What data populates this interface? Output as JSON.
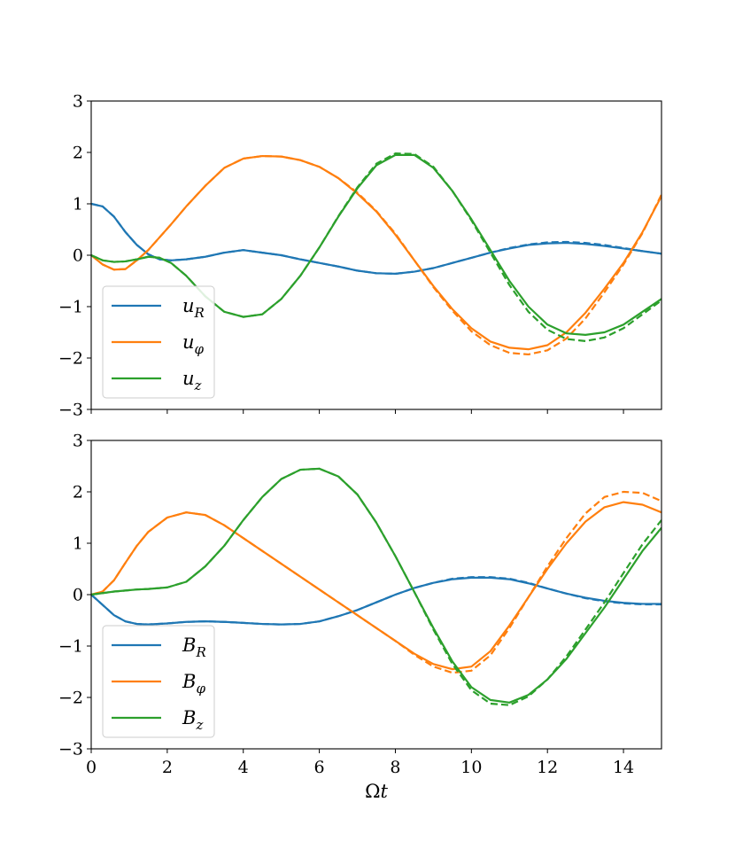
{
  "chart_data": [
    {
      "type": "line",
      "id": "velocity",
      "xlim": [
        0,
        15
      ],
      "ylim": [
        -3,
        3
      ],
      "yticks": [
        -3,
        -2,
        -1,
        0,
        1,
        2,
        3
      ],
      "ytick_labels": [
        "−3",
        "−2",
        "−1",
        "0",
        "1",
        "2",
        "3"
      ],
      "xticks": [
        0,
        2,
        4,
        6,
        8,
        10,
        12,
        14
      ],
      "xtick_labels": [],
      "xlabel": "",
      "ylabel": "",
      "legend": {
        "placement": "lower-left"
      },
      "series": [
        {
          "name": "u_R",
          "label_main": "u",
          "label_sub": "R",
          "color": "#1f77b4",
          "x": [
            0,
            0.3,
            0.6,
            0.9,
            1.2,
            1.5,
            1.8,
            2.1,
            2.5,
            3.0,
            3.5,
            4.0,
            4.5,
            5.0,
            5.5,
            6.0,
            6.5,
            7.0,
            7.5,
            8.0,
            8.5,
            9.0,
            9.5,
            10.0,
            10.5,
            11.0,
            11.5,
            12.0,
            12.5,
            13.0,
            13.5,
            14.0,
            14.5,
            15.0
          ],
          "y": [
            1.0,
            0.95,
            0.75,
            0.45,
            0.2,
            0.02,
            -0.08,
            -0.1,
            -0.08,
            -0.03,
            0.05,
            0.1,
            0.05,
            0.0,
            -0.08,
            -0.15,
            -0.22,
            -0.3,
            -0.35,
            -0.36,
            -0.32,
            -0.25,
            -0.15,
            -0.05,
            0.05,
            0.13,
            0.2,
            0.23,
            0.24,
            0.22,
            0.18,
            0.13,
            0.08,
            0.03
          ],
          "dashed_y": [
            1.0,
            0.95,
            0.75,
            0.45,
            0.2,
            0.02,
            -0.08,
            -0.1,
            -0.08,
            -0.03,
            0.05,
            0.1,
            0.05,
            0.0,
            -0.08,
            -0.15,
            -0.22,
            -0.3,
            -0.35,
            -0.36,
            -0.32,
            -0.25,
            -0.15,
            -0.05,
            0.05,
            0.14,
            0.21,
            0.25,
            0.26,
            0.24,
            0.2,
            0.14,
            0.08,
            0.03
          ]
        },
        {
          "name": "u_φ",
          "label_main": "u",
          "label_sub": "φ",
          "color": "#ff7f0e",
          "x": [
            0,
            0.3,
            0.6,
            0.9,
            1.2,
            1.5,
            1.8,
            2.1,
            2.5,
            3.0,
            3.5,
            4.0,
            4.5,
            5.0,
            5.5,
            6.0,
            6.5,
            7.0,
            7.5,
            8.0,
            8.5,
            9.0,
            9.5,
            10.0,
            10.5,
            11.0,
            11.5,
            12.0,
            12.5,
            13.0,
            13.5,
            14.0,
            14.5,
            15.0
          ],
          "y": [
            0.0,
            -0.18,
            -0.28,
            -0.27,
            -0.1,
            0.1,
            0.35,
            0.6,
            0.95,
            1.35,
            1.7,
            1.88,
            1.93,
            1.92,
            1.85,
            1.72,
            1.5,
            1.2,
            0.85,
            0.4,
            -0.1,
            -0.6,
            -1.05,
            -1.42,
            -1.68,
            -1.8,
            -1.83,
            -1.75,
            -1.5,
            -1.12,
            -0.65,
            -0.15,
            0.45,
            1.15
          ],
          "dashed_y": [
            0.0,
            -0.18,
            -0.28,
            -0.27,
            -0.1,
            0.1,
            0.35,
            0.6,
            0.95,
            1.35,
            1.7,
            1.88,
            1.93,
            1.92,
            1.85,
            1.72,
            1.5,
            1.22,
            0.86,
            0.42,
            -0.1,
            -0.62,
            -1.08,
            -1.48,
            -1.75,
            -1.9,
            -1.93,
            -1.85,
            -1.62,
            -1.23,
            -0.72,
            -0.18,
            0.43,
            1.18
          ]
        },
        {
          "name": "u_z",
          "label_main": "u",
          "label_sub": "z",
          "color": "#2ca02c",
          "x": [
            0,
            0.3,
            0.6,
            0.9,
            1.2,
            1.5,
            1.8,
            2.1,
            2.5,
            3.0,
            3.5,
            4.0,
            4.5,
            5.0,
            5.5,
            6.0,
            6.5,
            7.0,
            7.5,
            8.0,
            8.5,
            9.0,
            9.5,
            10.0,
            10.5,
            11.0,
            11.5,
            12.0,
            12.5,
            13.0,
            13.5,
            14.0,
            14.5,
            15.0
          ],
          "y": [
            0.0,
            -0.1,
            -0.13,
            -0.12,
            -0.08,
            -0.03,
            -0.05,
            -0.15,
            -0.4,
            -0.8,
            -1.1,
            -1.2,
            -1.15,
            -0.85,
            -0.4,
            0.15,
            0.75,
            1.3,
            1.75,
            1.95,
            1.95,
            1.7,
            1.25,
            0.7,
            0.1,
            -0.5,
            -1.0,
            -1.35,
            -1.52,
            -1.55,
            -1.5,
            -1.35,
            -1.1,
            -0.85
          ],
          "dashed_y": [
            0.0,
            -0.1,
            -0.13,
            -0.12,
            -0.08,
            -0.03,
            -0.05,
            -0.15,
            -0.4,
            -0.8,
            -1.1,
            -1.2,
            -1.15,
            -0.85,
            -0.4,
            0.15,
            0.76,
            1.32,
            1.78,
            1.98,
            1.97,
            1.72,
            1.25,
            0.68,
            0.05,
            -0.58,
            -1.1,
            -1.45,
            -1.63,
            -1.67,
            -1.6,
            -1.42,
            -1.15,
            -0.88
          ]
        }
      ]
    },
    {
      "type": "line",
      "id": "magnetic",
      "xlim": [
        0,
        15
      ],
      "ylim": [
        -3,
        3
      ],
      "yticks": [
        -3,
        -2,
        -1,
        0,
        1,
        2,
        3
      ],
      "ytick_labels": [
        "−3",
        "−2",
        "−1",
        "0",
        "1",
        "2",
        "3"
      ],
      "xticks": [
        0,
        2,
        4,
        6,
        8,
        10,
        12,
        14
      ],
      "xtick_labels": [
        "0",
        "2",
        "4",
        "6",
        "8",
        "10",
        "12",
        "14"
      ],
      "xlabel": "Ωt",
      "ylabel": "",
      "legend": {
        "placement": "lower-left"
      },
      "series": [
        {
          "name": "B_R",
          "label_main": "B",
          "label_sub": "R",
          "color": "#1f77b4",
          "x": [
            0,
            0.3,
            0.6,
            0.9,
            1.2,
            1.5,
            2.0,
            2.5,
            3.0,
            3.5,
            4.0,
            4.5,
            5.0,
            5.5,
            6.0,
            6.5,
            7.0,
            7.5,
            8.0,
            8.5,
            9.0,
            9.5,
            10.0,
            10.5,
            11.0,
            11.5,
            12.0,
            12.5,
            13.0,
            13.5,
            14.0,
            14.5,
            15.0
          ],
          "y": [
            0.0,
            -0.2,
            -0.4,
            -0.52,
            -0.57,
            -0.58,
            -0.56,
            -0.53,
            -0.52,
            -0.53,
            -0.55,
            -0.57,
            -0.58,
            -0.57,
            -0.52,
            -0.42,
            -0.3,
            -0.15,
            0.0,
            0.13,
            0.23,
            0.3,
            0.33,
            0.33,
            0.3,
            0.22,
            0.12,
            0.02,
            -0.06,
            -0.12,
            -0.16,
            -0.18,
            -0.18
          ],
          "dashed_y": [
            0.0,
            -0.2,
            -0.4,
            -0.52,
            -0.57,
            -0.58,
            -0.56,
            -0.53,
            -0.52,
            -0.53,
            -0.55,
            -0.57,
            -0.58,
            -0.57,
            -0.52,
            -0.42,
            -0.3,
            -0.15,
            0.0,
            0.13,
            0.23,
            0.31,
            0.34,
            0.34,
            0.31,
            0.23,
            0.12,
            0.02,
            -0.07,
            -0.13,
            -0.17,
            -0.19,
            -0.19
          ]
        },
        {
          "name": "B_φ",
          "label_main": "B",
          "label_sub": "φ",
          "color": "#ff7f0e",
          "x": [
            0,
            0.3,
            0.6,
            0.9,
            1.2,
            1.5,
            2.0,
            2.5,
            3.0,
            3.5,
            4.0,
            4.5,
            5.0,
            5.5,
            6.0,
            6.5,
            7.0,
            7.5,
            8.0,
            8.5,
            9.0,
            9.5,
            10.0,
            10.5,
            11.0,
            11.5,
            12.0,
            12.5,
            13.0,
            13.5,
            14.0,
            14.5,
            15.0
          ],
          "y": [
            0.0,
            0.06,
            0.28,
            0.62,
            0.95,
            1.22,
            1.5,
            1.6,
            1.55,
            1.35,
            1.1,
            0.85,
            0.6,
            0.35,
            0.1,
            -0.15,
            -0.4,
            -0.65,
            -0.9,
            -1.15,
            -1.35,
            -1.45,
            -1.4,
            -1.1,
            -0.6,
            -0.05,
            0.5,
            1.0,
            1.42,
            1.7,
            1.8,
            1.75,
            1.6
          ],
          "dashed_y": [
            0.0,
            0.06,
            0.28,
            0.62,
            0.95,
            1.22,
            1.5,
            1.6,
            1.55,
            1.35,
            1.1,
            0.85,
            0.6,
            0.35,
            0.1,
            -0.15,
            -0.4,
            -0.65,
            -0.9,
            -1.17,
            -1.4,
            -1.52,
            -1.48,
            -1.18,
            -0.65,
            -0.05,
            0.55,
            1.1,
            1.58,
            1.9,
            2.0,
            1.98,
            1.82
          ]
        },
        {
          "name": "B_z",
          "label_main": "B",
          "label_sub": "z",
          "color": "#2ca02c",
          "x": [
            0,
            0.3,
            0.6,
            0.9,
            1.2,
            1.5,
            2.0,
            2.5,
            3.0,
            3.5,
            4.0,
            4.5,
            5.0,
            5.5,
            6.0,
            6.5,
            7.0,
            7.5,
            8.0,
            8.5,
            9.0,
            9.5,
            10.0,
            10.5,
            11.0,
            11.5,
            12.0,
            12.5,
            13.0,
            13.5,
            14.0,
            14.5,
            15.0
          ],
          "y": [
            0.0,
            0.03,
            0.06,
            0.08,
            0.1,
            0.11,
            0.14,
            0.25,
            0.55,
            0.95,
            1.45,
            1.9,
            2.25,
            2.43,
            2.45,
            2.3,
            1.95,
            1.4,
            0.75,
            0.05,
            -0.65,
            -1.3,
            -1.8,
            -2.05,
            -2.1,
            -1.95,
            -1.65,
            -1.25,
            -0.75,
            -0.25,
            0.3,
            0.85,
            1.3
          ],
          "dashed_y": [
            0.0,
            0.03,
            0.06,
            0.08,
            0.1,
            0.11,
            0.14,
            0.25,
            0.55,
            0.95,
            1.45,
            1.9,
            2.25,
            2.43,
            2.45,
            2.3,
            1.95,
            1.4,
            0.75,
            0.05,
            -0.68,
            -1.35,
            -1.86,
            -2.12,
            -2.15,
            -1.98,
            -1.65,
            -1.2,
            -0.68,
            -0.15,
            0.42,
            0.98,
            1.45
          ]
        }
      ]
    }
  ]
}
